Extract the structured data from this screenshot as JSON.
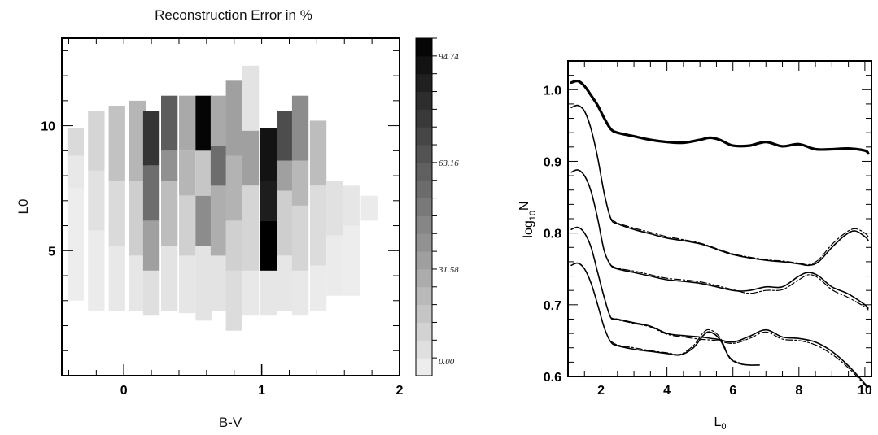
{
  "chart_data": [
    {
      "type": "heatmap",
      "title": "Reconstruction Error in %",
      "xlabel": "B-V",
      "ylabel": "L0",
      "xlim": [
        -0.45,
        2.0
      ],
      "ylim": [
        0.0,
        13.5
      ],
      "x_ticks": [
        "0",
        "1",
        "2"
      ],
      "x_tick_values": [
        0,
        1,
        2
      ],
      "y_ticks": [
        "5",
        "10"
      ],
      "y_tick_values": [
        5,
        10
      ],
      "colorbar": {
        "min": 0,
        "max": 100,
        "tick_labels": [
          "94.74",
          "63.16",
          "31.58",
          "0.00"
        ],
        "tick_values": [
          94.74,
          63.16,
          31.58,
          0.0
        ],
        "levels": 19,
        "color_low": "#f2f2f2",
        "color_high": "#000000"
      },
      "columns": [
        {
          "x": -0.35,
          "cells": [
            [
              7.5,
              8.8,
              4
            ],
            [
              8.8,
              9.9,
              10
            ],
            [
              3.0,
              7.5,
              2
            ]
          ]
        },
        {
          "x": -0.2,
          "cells": [
            [
              5.8,
              8.2,
              7
            ],
            [
              8.2,
              10.6,
              12
            ],
            [
              2.6,
              5.8,
              3
            ]
          ]
        },
        {
          "x": -0.05,
          "cells": [
            [
              5.2,
              7.8,
              10
            ],
            [
              7.8,
              10.8,
              20
            ],
            [
              2.6,
              5.2,
              4
            ]
          ]
        },
        {
          "x": 0.1,
          "cells": [
            [
              4.8,
              7.8,
              15
            ],
            [
              7.8,
              11.0,
              25
            ],
            [
              2.6,
              4.8,
              5
            ]
          ]
        },
        {
          "x": 0.2,
          "cells": [
            [
              4.2,
              6.2,
              34
            ],
            [
              6.2,
              8.4,
              55
            ],
            [
              8.4,
              10.6,
              78
            ],
            [
              2.4,
              4.2,
              8
            ]
          ]
        },
        {
          "x": 0.33,
          "cells": [
            [
              5.2,
              7.8,
              22
            ],
            [
              7.8,
              9.0,
              40
            ],
            [
              9.0,
              11.2,
              62
            ],
            [
              2.6,
              5.2,
              6
            ]
          ]
        },
        {
          "x": 0.46,
          "cells": [
            [
              4.8,
              7.2,
              14
            ],
            [
              7.2,
              9.0,
              25
            ],
            [
              9.0,
              11.2,
              30
            ],
            [
              2.5,
              4.8,
              5
            ]
          ]
        },
        {
          "x": 0.58,
          "cells": [
            [
              5.2,
              7.2,
              42
            ],
            [
              7.2,
              9.0,
              18
            ],
            [
              9.0,
              11.2,
              98
            ],
            [
              2.2,
              5.2,
              6
            ]
          ]
        },
        {
          "x": 0.69,
          "cells": [
            [
              4.8,
              7.6,
              28
            ],
            [
              7.6,
              9.2,
              55
            ],
            [
              9.2,
              11.2,
              30
            ],
            [
              2.6,
              4.8,
              6
            ]
          ]
        },
        {
          "x": 0.8,
          "cells": [
            [
              4.2,
              6.2,
              14
            ],
            [
              6.2,
              8.8,
              26
            ],
            [
              8.8,
              11.8,
              34
            ],
            [
              1.8,
              4.2,
              9
            ]
          ]
        },
        {
          "x": 0.92,
          "cells": [
            [
              4.2,
              7.6,
              12
            ],
            [
              7.6,
              9.8,
              34
            ],
            [
              9.8,
              12.4,
              6
            ],
            [
              2.4,
              4.2,
              4
            ]
          ]
        },
        {
          "x": 1.05,
          "cells": [
            [
              4.2,
              6.2,
              100
            ],
            [
              6.2,
              7.8,
              88
            ],
            [
              7.8,
              9.9,
              92
            ],
            [
              2.4,
              4.2,
              5
            ]
          ]
        },
        {
          "x": 1.17,
          "cells": [
            [
              4.8,
              7.4,
              15
            ],
            [
              7.4,
              8.6,
              34
            ],
            [
              8.6,
              10.6,
              68
            ],
            [
              2.6,
              4.8,
              5
            ]
          ]
        },
        {
          "x": 1.28,
          "cells": [
            [
              4.2,
              6.8,
              12
            ],
            [
              6.8,
              8.6,
              24
            ],
            [
              8.6,
              11.2,
              42
            ],
            [
              2.4,
              4.2,
              4
            ]
          ]
        },
        {
          "x": 1.41,
          "cells": [
            [
              4.4,
              7.6,
              9
            ],
            [
              7.6,
              10.2,
              22
            ],
            [
              2.6,
              4.4,
              3
            ]
          ]
        },
        {
          "x": 1.53,
          "cells": [
            [
              5.6,
              7.8,
              7
            ],
            [
              3.2,
              5.6,
              3
            ]
          ]
        },
        {
          "x": 1.65,
          "cells": [
            [
              6.0,
              7.6,
              5
            ],
            [
              3.2,
              6.0,
              2
            ]
          ]
        },
        {
          "x": 1.78,
          "cells": [
            [
              6.2,
              7.2,
              3
            ]
          ]
        }
      ]
    },
    {
      "type": "line",
      "xlabel_main": "L",
      "xlabel_sub": "0",
      "ylabel_pre": "log",
      "ylabel_sub": "10",
      "ylabel_post": "N",
      "xlim": [
        1.0,
        10.2
      ],
      "ylim": [
        0.6,
        1.04
      ],
      "x_ticks": [
        "2",
        "4",
        "6",
        "8",
        "10"
      ],
      "x_tick_values": [
        2,
        4,
        6,
        8,
        10
      ],
      "y_ticks": [
        "1.0",
        "0.9",
        "0.8",
        "0.7",
        "0.6"
      ],
      "y_tick_values": [
        1.0,
        0.9,
        0.8,
        0.7,
        0.6
      ],
      "series": [
        {
          "style": "solid-thick",
          "x": [
            1.1,
            1.3,
            1.5,
            1.7,
            1.9,
            2.1,
            2.3,
            2.5,
            3.0,
            3.5,
            4.0,
            4.5,
            5.0,
            5.3,
            5.6,
            6.0,
            6.5,
            7.0,
            7.5,
            8.0,
            8.5,
            9.0,
            9.5,
            10.0,
            10.1
          ],
          "y": [
            1.01,
            1.012,
            1.005,
            0.992,
            0.978,
            0.96,
            0.945,
            0.94,
            0.935,
            0.93,
            0.927,
            0.926,
            0.93,
            0.933,
            0.93,
            0.922,
            0.922,
            0.927,
            0.921,
            0.924,
            0.917,
            0.917,
            0.918,
            0.915,
            0.911
          ]
        },
        {
          "style": "solid",
          "x": [
            1.1,
            1.3,
            1.5,
            1.7,
            1.9,
            2.1,
            2.3,
            2.5,
            3.0,
            3.5,
            4.0,
            5.0,
            6.0,
            7.0,
            7.5,
            8.0,
            8.3,
            8.6,
            9.0,
            9.4,
            9.7,
            10.0,
            10.1
          ],
          "y": [
            0.975,
            0.978,
            0.97,
            0.945,
            0.905,
            0.855,
            0.82,
            0.813,
            0.805,
            0.799,
            0.793,
            0.785,
            0.77,
            0.762,
            0.76,
            0.757,
            0.755,
            0.76,
            0.78,
            0.797,
            0.803,
            0.795,
            0.79
          ]
        },
        {
          "style": "dashdot",
          "x": [
            2.3,
            2.5,
            3.0,
            3.5,
            4.0,
            5.0,
            6.0,
            7.0,
            7.5,
            8.0,
            8.3,
            8.6,
            9.0,
            9.4,
            9.7,
            10.0,
            10.1
          ],
          "y": [
            0.82,
            0.814,
            0.807,
            0.801,
            0.795,
            0.786,
            0.771,
            0.763,
            0.761,
            0.758,
            0.756,
            0.763,
            0.784,
            0.8,
            0.806,
            0.8,
            0.795
          ]
        },
        {
          "style": "solid",
          "x": [
            1.1,
            1.3,
            1.5,
            1.7,
            1.9,
            2.1,
            2.3,
            2.5,
            3.0,
            3.5,
            4.0,
            5.0,
            6.0,
            6.5,
            7.0,
            7.5,
            8.0,
            8.3,
            8.6,
            9.0,
            9.5,
            10.0,
            10.1
          ],
          "y": [
            0.885,
            0.888,
            0.88,
            0.858,
            0.82,
            0.775,
            0.755,
            0.75,
            0.745,
            0.74,
            0.735,
            0.73,
            0.72,
            0.72,
            0.725,
            0.725,
            0.74,
            0.745,
            0.74,
            0.725,
            0.715,
            0.7,
            0.695
          ]
        },
        {
          "style": "dashdot",
          "x": [
            2.3,
            2.5,
            3.0,
            3.5,
            4.0,
            5.0,
            6.0,
            6.5,
            7.0,
            7.5,
            8.0,
            8.3,
            8.6,
            9.0,
            9.5,
            10.0,
            10.1
          ],
          "y": [
            0.755,
            0.751,
            0.747,
            0.742,
            0.737,
            0.732,
            0.721,
            0.716,
            0.72,
            0.721,
            0.735,
            0.742,
            0.737,
            0.721,
            0.71,
            0.697,
            0.693
          ]
        },
        {
          "style": "solid",
          "x": [
            1.1,
            1.3,
            1.5,
            1.7,
            1.9,
            2.1,
            2.3,
            2.5,
            3.0,
            3.5,
            4.0,
            4.5,
            5.0,
            5.5,
            6.0,
            6.5,
            7.0,
            7.5,
            8.0,
            8.5,
            9.0,
            9.5,
            10.0,
            10.1
          ],
          "y": [
            0.805,
            0.808,
            0.8,
            0.78,
            0.745,
            0.71,
            0.682,
            0.68,
            0.675,
            0.67,
            0.66,
            0.657,
            0.655,
            0.652,
            0.648,
            0.656,
            0.665,
            0.655,
            0.653,
            0.648,
            0.635,
            0.615,
            0.59,
            0.585
          ]
        },
        {
          "style": "dashdot",
          "x": [
            2.3,
            2.5,
            3.0,
            3.5,
            4.0,
            4.5,
            5.0,
            5.5,
            6.0,
            6.5,
            7.0,
            7.5,
            8.0,
            8.5,
            9.0,
            9.5,
            10.0,
            10.1
          ],
          "y": [
            0.682,
            0.679,
            0.674,
            0.669,
            0.659,
            0.655,
            0.652,
            0.65,
            0.646,
            0.653,
            0.662,
            0.652,
            0.65,
            0.644,
            0.631,
            0.612,
            0.588,
            0.583
          ]
        },
        {
          "style": "solid",
          "x": [
            1.1,
            1.3,
            1.5,
            1.7,
            1.9,
            2.1,
            2.3,
            2.5,
            3.0,
            3.5,
            4.0,
            4.4,
            4.8,
            5.1,
            5.3,
            5.6,
            5.9,
            6.2,
            6.5,
            6.8
          ],
          "y": [
            0.755,
            0.758,
            0.75,
            0.73,
            0.7,
            0.668,
            0.648,
            0.643,
            0.638,
            0.635,
            0.632,
            0.63,
            0.64,
            0.657,
            0.662,
            0.652,
            0.626,
            0.618,
            0.616,
            0.616
          ]
        },
        {
          "style": "dashdot",
          "x": [
            2.3,
            2.5,
            3.0,
            3.5,
            4.0,
            4.4,
            4.8,
            5.1,
            5.3,
            5.6,
            5.9,
            6.2
          ],
          "y": [
            0.649,
            0.644,
            0.64,
            0.636,
            0.633,
            0.631,
            0.643,
            0.661,
            0.665,
            0.655,
            0.627,
            0.619
          ]
        }
      ]
    }
  ]
}
